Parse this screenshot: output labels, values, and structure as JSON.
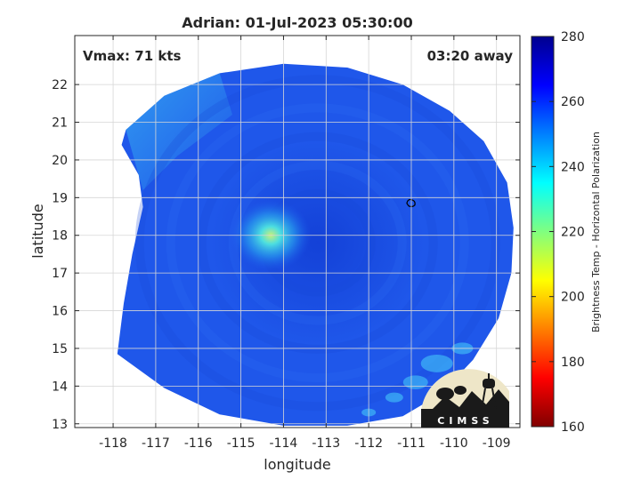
{
  "chart_data": {
    "type": "heatmap",
    "title": "Adrian: 01-Jul-2023 05:30:00",
    "xlabel": "longitude",
    "ylabel": "latitude",
    "xlim": [
      -118.9,
      -108.45
    ],
    "ylim": [
      12.9,
      23.3
    ],
    "xticks": [
      -118,
      -117,
      -116,
      -115,
      -114,
      -113,
      -112,
      -111,
      -110,
      -109
    ],
    "yticks": [
      13,
      14,
      15,
      16,
      17,
      18,
      19,
      20,
      21,
      22
    ],
    "grid": true,
    "annotations": {
      "vmax": "Vmax: 71 kts",
      "time_away": "03:20 away"
    },
    "colorbar": {
      "label": "Brightness Temp - Horizontal Polarization",
      "ticks": [
        160,
        180,
        200,
        220,
        240,
        260,
        280
      ],
      "range": [
        160,
        280
      ],
      "colormap": "jet"
    },
    "field": {
      "background_value": 262,
      "eye_center": [
        -113.2,
        17.8
      ],
      "warm_spot": {
        "center": [
          -114.3,
          18.0
        ],
        "value": 225
      },
      "small_contour": [
        -111.0,
        18.85
      ],
      "bright_band": {
        "lon_range": [
          -111.5,
          -109.5
        ],
        "lat_range": [
          13.3,
          15.2
        ],
        "value": 244
      }
    }
  },
  "logo": {
    "text": "CIMSS"
  }
}
